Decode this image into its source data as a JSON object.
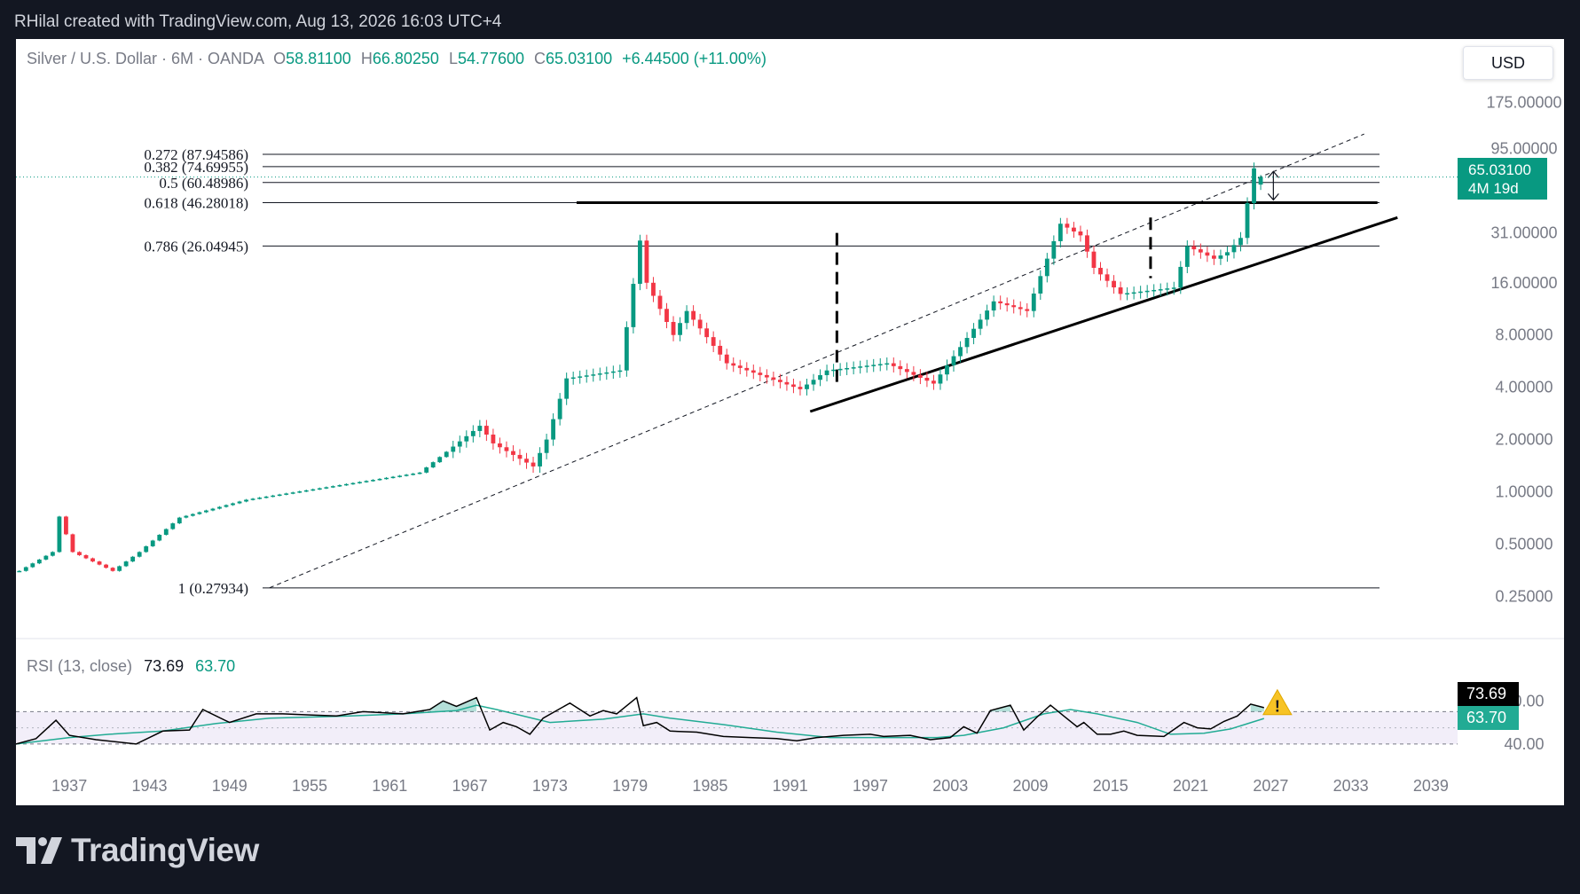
{
  "header": {
    "attribution": "RHilal created with TradingView.com, Aug 13, 2026 16:03 UTC+4"
  },
  "legend": {
    "symbol": "Silver / U.S. Dollar · 6M · OANDA",
    "open_label": "O",
    "open": "58.81100",
    "high_label": "H",
    "high": "66.80250",
    "low_label": "L",
    "low": "54.77600",
    "close_label": "C",
    "close": "65.03100",
    "change": "+6.44500 (+11.00%)"
  },
  "currency_button": "USD",
  "last_price": {
    "price": "65.03100",
    "countdown": "4M 19d"
  },
  "rsi": {
    "label": "RSI (13, close)",
    "value": "73.69",
    "ma_value": "63.70",
    "overlap_label": "70.00"
  },
  "footer": {
    "brand": "TradingView"
  },
  "colors": {
    "up": "#089981",
    "down": "#f23645",
    "rsi_line": "#000000",
    "rsi_ma": "#22ab94",
    "background": "#131722"
  },
  "icons": {
    "warning": "warning-icon",
    "brand": "tradingview-logo-icon"
  },
  "chart_data": [
    {
      "type": "candlestick",
      "title": "Silver / U.S. Dollar · 6M · OANDA",
      "scale": "log",
      "x_ticks": [
        "1937",
        "1943",
        "1949",
        "1955",
        "1961",
        "1967",
        "1973",
        "1979",
        "1985",
        "1991",
        "1997",
        "2003",
        "2009",
        "2015",
        "2021",
        "2027",
        "2033",
        "2039"
      ],
      "x_tick_years": [
        1937,
        1943,
        1949,
        1955,
        1961,
        1967,
        1973,
        1979,
        1985,
        1991,
        1997,
        2003,
        2009,
        2015,
        2021,
        2027,
        2033,
        2039
      ],
      "xlim": [
        1933,
        2041
      ],
      "y_tick_labels": [
        "175.00000",
        "95.00000",
        "31.00000",
        "16.00000",
        "8.00000",
        "4.00000",
        "2.00000",
        "1.00000",
        "0.50000",
        "0.25000"
      ],
      "y_tick_values": [
        175,
        95,
        31,
        16,
        8,
        4,
        2,
        1,
        0.5,
        0.25
      ],
      "ylim": [
        0.218,
        205
      ],
      "key_points": [
        {
          "date": 1933.0,
          "close": 0.35
        },
        {
          "date": 1935.5,
          "close": 0.45
        },
        {
          "date": 1936.0,
          "close": 0.72
        },
        {
          "date": 1937.0,
          "close": 0.45
        },
        {
          "date": 1940.0,
          "close": 0.35
        },
        {
          "date": 1942.0,
          "close": 0.45
        },
        {
          "date": 1945.0,
          "close": 0.71
        },
        {
          "date": 1950.0,
          "close": 0.9
        },
        {
          "date": 1963.0,
          "close": 1.29
        },
        {
          "date": 1967.5,
          "close": 2.4
        },
        {
          "date": 1968.5,
          "close": 1.9
        },
        {
          "date": 1971.5,
          "close": 1.4
        },
        {
          "date": 1972.5,
          "close": 2.0
        },
        {
          "date": 1974.0,
          "close": 4.5
        },
        {
          "date": 1978.0,
          "close": 5.0
        },
        {
          "date": 1979.5,
          "close": 28
        },
        {
          "date": 1980.0,
          "close": 16
        },
        {
          "date": 1982.0,
          "close": 8
        },
        {
          "date": 1983.0,
          "close": 11
        },
        {
          "date": 1986.0,
          "close": 5.5
        },
        {
          "date": 1991.5,
          "close": 3.9
        },
        {
          "date": 1993.5,
          "close": 5.0
        },
        {
          "date": 1998.0,
          "close": 5.5
        },
        {
          "date": 2001.5,
          "close": 4.2
        },
        {
          "date": 2006.0,
          "close": 12.5
        },
        {
          "date": 2008.5,
          "close": 11
        },
        {
          "date": 2011.0,
          "close": 35
        },
        {
          "date": 2012.5,
          "close": 30
        },
        {
          "date": 2013.5,
          "close": 19.5
        },
        {
          "date": 2015.5,
          "close": 13.8
        },
        {
          "date": 2019.5,
          "close": 15
        },
        {
          "date": 2020.5,
          "close": 26
        },
        {
          "date": 2022.5,
          "close": 22
        },
        {
          "date": 2023.5,
          "close": 24
        },
        {
          "date": 2024.5,
          "close": 29
        },
        {
          "date": 2025.5,
          "close": 73
        },
        {
          "date": 2026.0,
          "close": 58.811
        },
        {
          "date": 2026.5,
          "open": 58.811,
          "high": 66.8025,
          "low": 54.776,
          "close": 65.031
        }
      ],
      "last_price": 65.031
    },
    {
      "type": "fibonacci",
      "levels": [
        {
          "ratio": "0.272",
          "price": "87.94586"
        },
        {
          "ratio": "0.382",
          "price": "74.69955"
        },
        {
          "ratio": "0.5",
          "price": "60.48986"
        },
        {
          "ratio": "0.618",
          "price": "46.28018"
        },
        {
          "ratio": "0.786",
          "price": "26.04945"
        },
        {
          "ratio": "1",
          "price": "0.27934"
        }
      ]
    },
    {
      "type": "line",
      "title": "RSI (13, close)",
      "ylim": [
        30,
        100
      ],
      "y_ticks": [
        70,
        40
      ],
      "overbought": 70,
      "oversold": 40,
      "series": [
        {
          "name": "RSI",
          "values": [
            [
              1933,
              40
            ],
            [
              1934.5,
              45
            ],
            [
              1936,
              62
            ],
            [
              1937,
              48
            ],
            [
              1939,
              44
            ],
            [
              1942,
              40
            ],
            [
              1944,
              52
            ],
            [
              1946,
              53
            ],
            [
              1947,
              72
            ],
            [
              1949,
              60
            ],
            [
              1951,
              68
            ],
            [
              1953,
              68
            ],
            [
              1955,
              67
            ],
            [
              1957,
              66
            ],
            [
              1959,
              70
            ],
            [
              1962,
              68
            ],
            [
              1964,
              72
            ],
            [
              1965,
              80
            ],
            [
              1966,
              75
            ],
            [
              1967.5,
              83
            ],
            [
              1968.5,
              53
            ],
            [
              1969.5,
              60
            ],
            [
              1970.5,
              56
            ],
            [
              1971.5,
              49
            ],
            [
              1972.5,
              64
            ],
            [
              1974.5,
              78
            ],
            [
              1976,
              66
            ],
            [
              1977,
              71
            ],
            [
              1978,
              68
            ],
            [
              1979.5,
              83
            ],
            [
              1980,
              57
            ],
            [
              1981,
              60
            ],
            [
              1982,
              52
            ],
            [
              1984,
              51
            ],
            [
              1986,
              47
            ],
            [
              1988,
              46
            ],
            [
              1990,
              45
            ],
            [
              1991.5,
              43
            ],
            [
              1993,
              46
            ],
            [
              1995,
              48
            ],
            [
              1997,
              49
            ],
            [
              1998,
              47
            ],
            [
              2000,
              48
            ],
            [
              2001.5,
              44
            ],
            [
              2003,
              46
            ],
            [
              2004,
              56
            ],
            [
              2005,
              50
            ],
            [
              2006,
              71
            ],
            [
              2007.5,
              76
            ],
            [
              2008.5,
              53
            ],
            [
              2009.5,
              65
            ],
            [
              2010.5,
              76
            ],
            [
              2011.5,
              66
            ],
            [
              2012.5,
              56
            ],
            [
              2013,
              60
            ],
            [
              2014,
              49
            ],
            [
              2015,
              49
            ],
            [
              2016,
              52
            ],
            [
              2017,
              48
            ],
            [
              2019,
              47
            ],
            [
              2020.5,
              60
            ],
            [
              2021.5,
              55
            ],
            [
              2022.5,
              54
            ],
            [
              2023.5,
              61
            ],
            [
              2024.5,
              66
            ],
            [
              2025.5,
              77
            ],
            [
              2026.5,
              73.69
            ]
          ]
        },
        {
          "name": "RSI MA",
          "values": [
            [
              1933,
              40
            ],
            [
              1937,
              46
            ],
            [
              1940,
              49
            ],
            [
              1944,
              52
            ],
            [
              1948,
              59
            ],
            [
              1952,
              64
            ],
            [
              1958,
              66
            ],
            [
              1962,
              68
            ],
            [
              1966,
              71
            ],
            [
              1967.5,
              76
            ],
            [
              1969,
              72
            ],
            [
              1973,
              60
            ],
            [
              1977,
              63
            ],
            [
              1980,
              68
            ],
            [
              1982,
              64
            ],
            [
              1986,
              58
            ],
            [
              1990,
              51
            ],
            [
              1994,
              46
            ],
            [
              1998,
              46
            ],
            [
              2002,
              46
            ],
            [
              2004,
              48
            ],
            [
              2007,
              55
            ],
            [
              2010,
              68
            ],
            [
              2012,
              72
            ],
            [
              2014,
              68
            ],
            [
              2017,
              60
            ],
            [
              2019.5,
              49
            ],
            [
              2022,
              50
            ],
            [
              2024,
              54
            ],
            [
              2026.5,
              63.7
            ]
          ]
        }
      ],
      "last_value": 73.69,
      "ma_last": 63.7
    }
  ]
}
